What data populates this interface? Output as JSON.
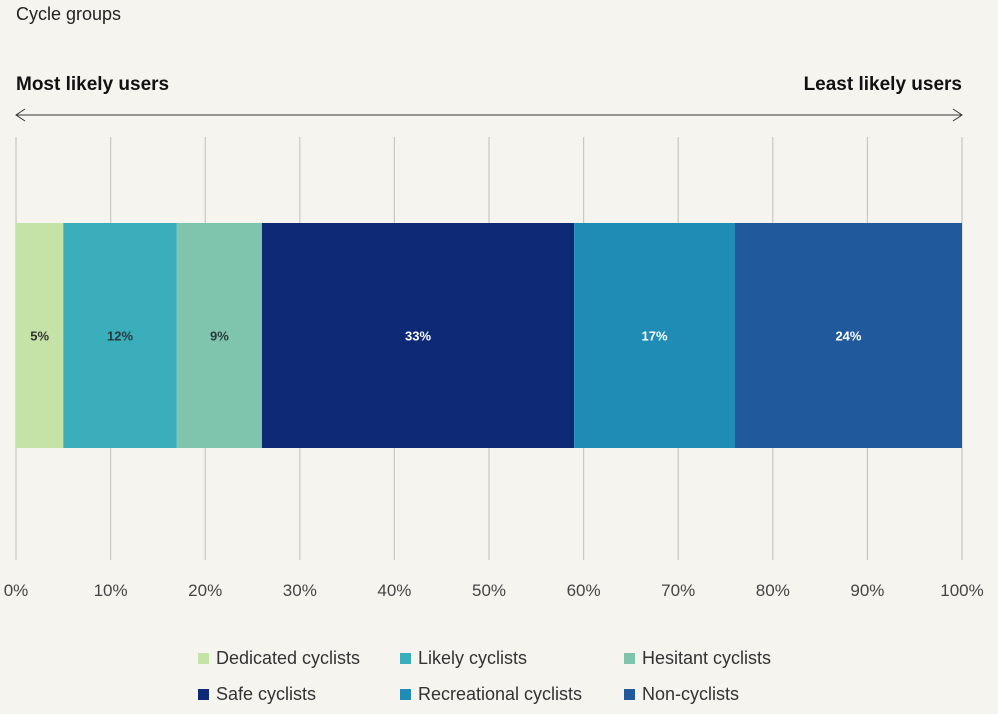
{
  "subtitle": "Cycle groups",
  "left_label": "Most likely users",
  "right_label": "Least likely users",
  "chart_data": {
    "type": "bar",
    "orientation": "horizontal-stacked",
    "xlim": [
      0,
      100
    ],
    "xticks": [
      "0%",
      "10%",
      "20%",
      "30%",
      "40%",
      "50%",
      "60%",
      "70%",
      "80%",
      "90%",
      "100%"
    ],
    "grid": true,
    "legend_position": "bottom",
    "series": [
      {
        "name": "Dedicated cyclists",
        "value": 5,
        "label": "5%",
        "color": "#c5e3a6",
        "text_color": "#333333"
      },
      {
        "name": "Likely cyclists",
        "value": 12,
        "label": "12%",
        "color": "#3aaebb",
        "text_color": "#2a3b40"
      },
      {
        "name": "Hesitant cyclists",
        "value": 9,
        "label": "9%",
        "color": "#7fc5ad",
        "text_color": "#2a3b40"
      },
      {
        "name": "Safe cyclists",
        "value": 33,
        "label": "33%",
        "color": "#0e2a77",
        "text_color": "#ffffff"
      },
      {
        "name": "Recreational cyclists",
        "value": 17,
        "label": "17%",
        "color": "#1f8cb5",
        "text_color": "#ffffff"
      },
      {
        "name": "Non-cyclists",
        "value": 24,
        "label": "24%",
        "color": "#215a9c",
        "text_color": "#ffffff"
      }
    ]
  }
}
